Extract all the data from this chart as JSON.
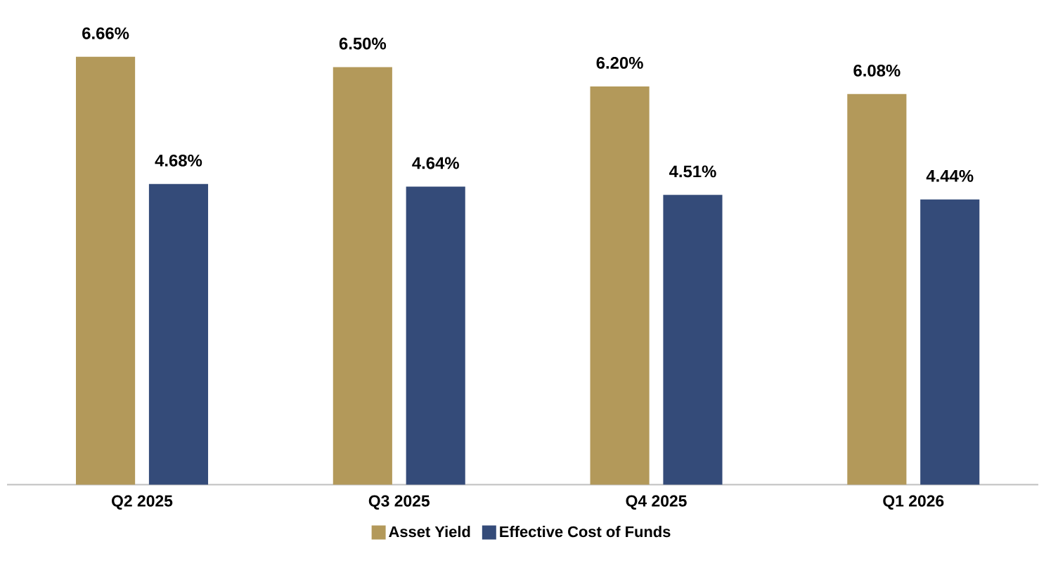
{
  "chart_data": {
    "type": "bar",
    "categories": [
      "Q2 2025",
      "Q3 2025",
      "Q4 2025",
      "Q1 2026"
    ],
    "series": [
      {
        "name": "Asset Yield",
        "color": "#b3995a",
        "values": [
          6.66,
          6.5,
          6.2,
          6.08
        ],
        "value_labels": [
          "6.66%",
          "6.50%",
          "6.20%",
          "6.08%"
        ]
      },
      {
        "name": "Effective Cost of Funds",
        "color": "#344b79",
        "values": [
          4.68,
          4.64,
          4.51,
          4.44
        ],
        "value_labels": [
          "4.68%",
          "4.64%",
          "4.51%",
          "4.44%"
        ]
      }
    ],
    "legend": "bottom"
  }
}
